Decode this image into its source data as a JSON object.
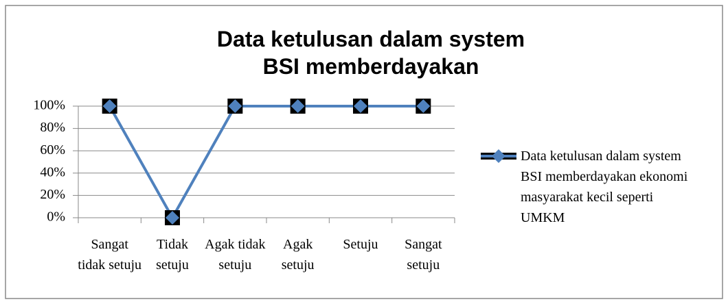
{
  "chart_data": {
    "type": "line",
    "title": "Data ketulusan dalam system BSI memberdayakan",
    "categories": [
      "Sangat tidak setuju",
      "Tidak setuju",
      "Agak tidak setuju",
      "Agak setuju",
      "Setuju",
      "Sangat setuju"
    ],
    "series": [
      {
        "name": "Data ketulusan dalam system BSI memberdayakan ekonomi masyarakat kecil seperti UMKM",
        "color": "#4f81bd",
        "values": [
          100,
          0,
          100,
          100,
          100,
          100
        ]
      }
    ],
    "ylim": [
      0,
      100
    ],
    "yticks": [
      {
        "value": 0,
        "label": "0%"
      },
      {
        "value": 20,
        "label": "20%"
      },
      {
        "value": 40,
        "label": "40%"
      },
      {
        "value": 60,
        "label": "60%"
      },
      {
        "value": 80,
        "label": "80%"
      },
      {
        "value": 100,
        "label": "100%"
      }
    ],
    "grid": true,
    "legend": "right"
  }
}
